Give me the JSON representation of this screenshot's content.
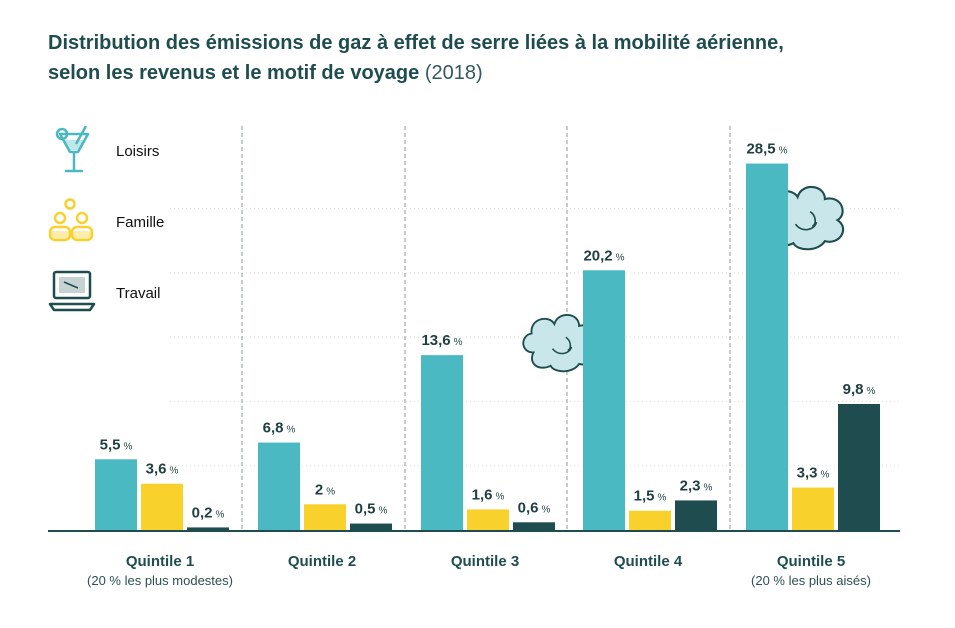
{
  "title": {
    "line1": "Distribution des émissions de gaz à effet de serre liées à la mobilité aérienne,",
    "line2": "selon les revenus et le motif de voyage",
    "year": "(2018)"
  },
  "legend": [
    {
      "label": "Loisirs",
      "icon": "cocktail-glass-icon",
      "color": "#4bb9c1"
    },
    {
      "label": "Famille",
      "icon": "family-people-icon",
      "color": "#f8d12d"
    },
    {
      "label": "Travail",
      "icon": "laptop-icon",
      "color": "#1f4d4f"
    }
  ],
  "chart_data": {
    "type": "bar",
    "categories": [
      "Quintile 1",
      "Quintile 2",
      "Quintile 3",
      "Quintile 4",
      "Quintile 5"
    ],
    "category_notes": [
      "(20 % les plus modestes)",
      "",
      "",
      "",
      "(20 % les plus aisés)"
    ],
    "series": [
      {
        "name": "Loisirs",
        "color": "#4bb9c1",
        "values": [
          5.5,
          6.8,
          13.6,
          20.2,
          28.5
        ],
        "labels": [
          "5,5 %",
          "6,8 %",
          "13,6 %",
          "20,2 %",
          "28,5 %"
        ]
      },
      {
        "name": "Famille",
        "color": "#f8d12d",
        "values": [
          3.6,
          2,
          1.6,
          1.5,
          3.3
        ],
        "labels": [
          "3,6 %",
          "2 %",
          "1,6 %",
          "1,5 %",
          "3,3 %"
        ]
      },
      {
        "name": "Travail",
        "color": "#1f4d4f",
        "values": [
          0.2,
          0.5,
          0.6,
          2.3,
          9.8
        ],
        "labels": [
          "0,2 %",
          "0,5 %",
          "0,6 %",
          "2,3 %",
          "9,8 %"
        ]
      }
    ],
    "ylim": [
      0,
      30
    ],
    "grid": true,
    "legend_position": "top-left",
    "decoration": "cloud-icon"
  }
}
